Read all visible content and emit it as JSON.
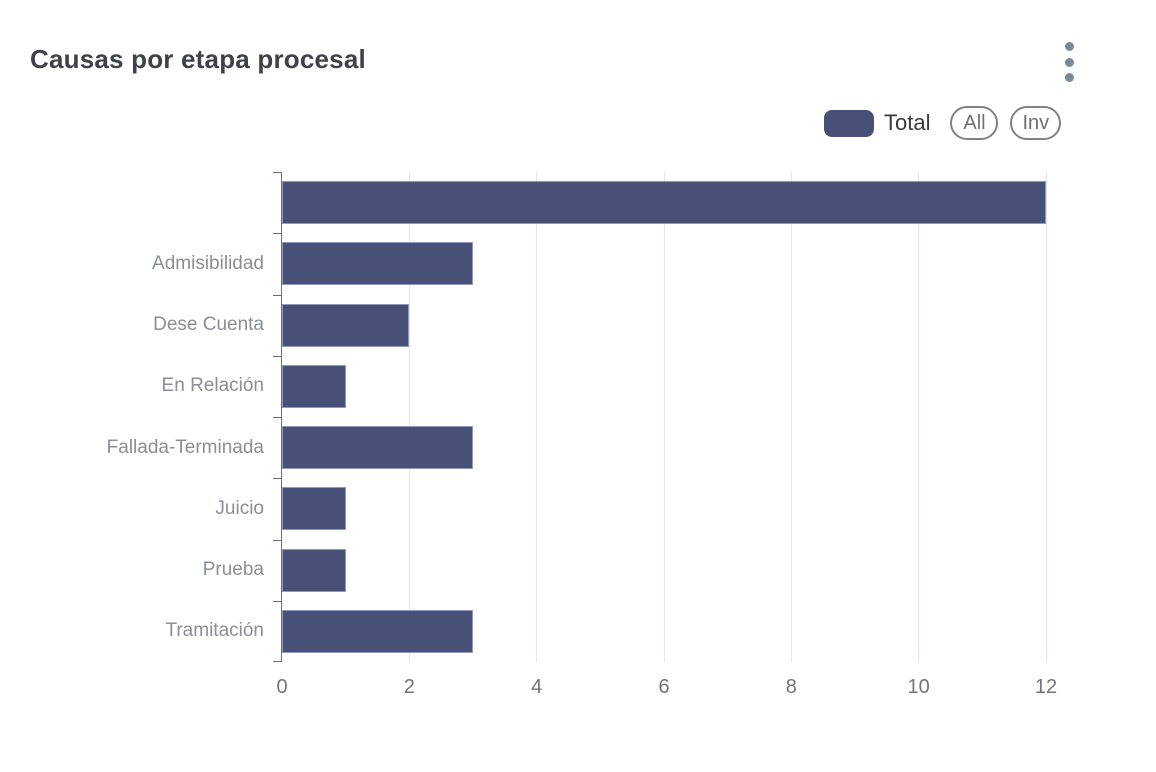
{
  "header": {
    "title": "Causas por etapa procesal"
  },
  "legend": {
    "series_label": "Total",
    "swatch_color": "#475177",
    "all_button_label": "All",
    "inv_button_label": "Inv"
  },
  "chart_data": {
    "type": "bar",
    "orientation": "horizontal",
    "title": "Causas por etapa procesal",
    "series_name": "Total",
    "categories": [
      "",
      "Admisibilidad",
      "Dese Cuenta",
      "En Relación",
      "Fallada-Terminada",
      "Juicio",
      "Prueba",
      "Tramitación"
    ],
    "values": [
      12,
      3,
      2,
      1,
      3,
      1,
      1,
      3
    ],
    "x_ticks": [
      0,
      2,
      4,
      6,
      8,
      10,
      12
    ],
    "xlim": [
      0,
      12
    ],
    "xlabel": "",
    "ylabel": "",
    "bar_color": "#475177",
    "gridline_color": "#e0e6f1",
    "grid": true,
    "legend_position": "top-right"
  }
}
